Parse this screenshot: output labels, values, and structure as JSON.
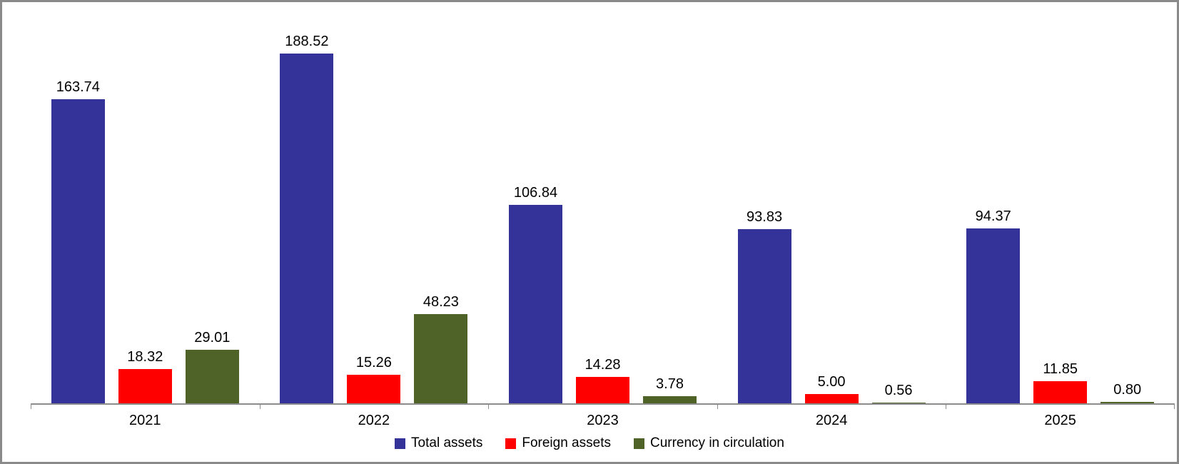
{
  "window": {
    "background_color": "#FFFFFF",
    "border_color": "#8A8A8A"
  },
  "chart_data": {
    "type": "bar",
    "title": "",
    "xlabel": "",
    "ylabel": "",
    "categories": [
      "2021",
      "2022",
      "2023",
      "2024",
      "2025"
    ],
    "series": [
      {
        "name": "Total assets",
        "color": "#333399",
        "values": [
          163.74,
          188.52,
          106.84,
          93.83,
          94.37
        ]
      },
      {
        "name": "Foreign assets",
        "color": "#FF0000",
        "values": [
          18.32,
          15.26,
          14.28,
          5.0,
          11.85
        ]
      },
      {
        "name": "Currency in circulation",
        "color": "#4F6228",
        "values": [
          29.01,
          48.23,
          3.78,
          0.56,
          0.8
        ]
      }
    ],
    "value_label_decimals": 2,
    "ylim": [
      0,
      200
    ],
    "grid": false,
    "y_axis_visible": false,
    "axis_color": "#8C8C8C",
    "legend_position": "bottom"
  }
}
